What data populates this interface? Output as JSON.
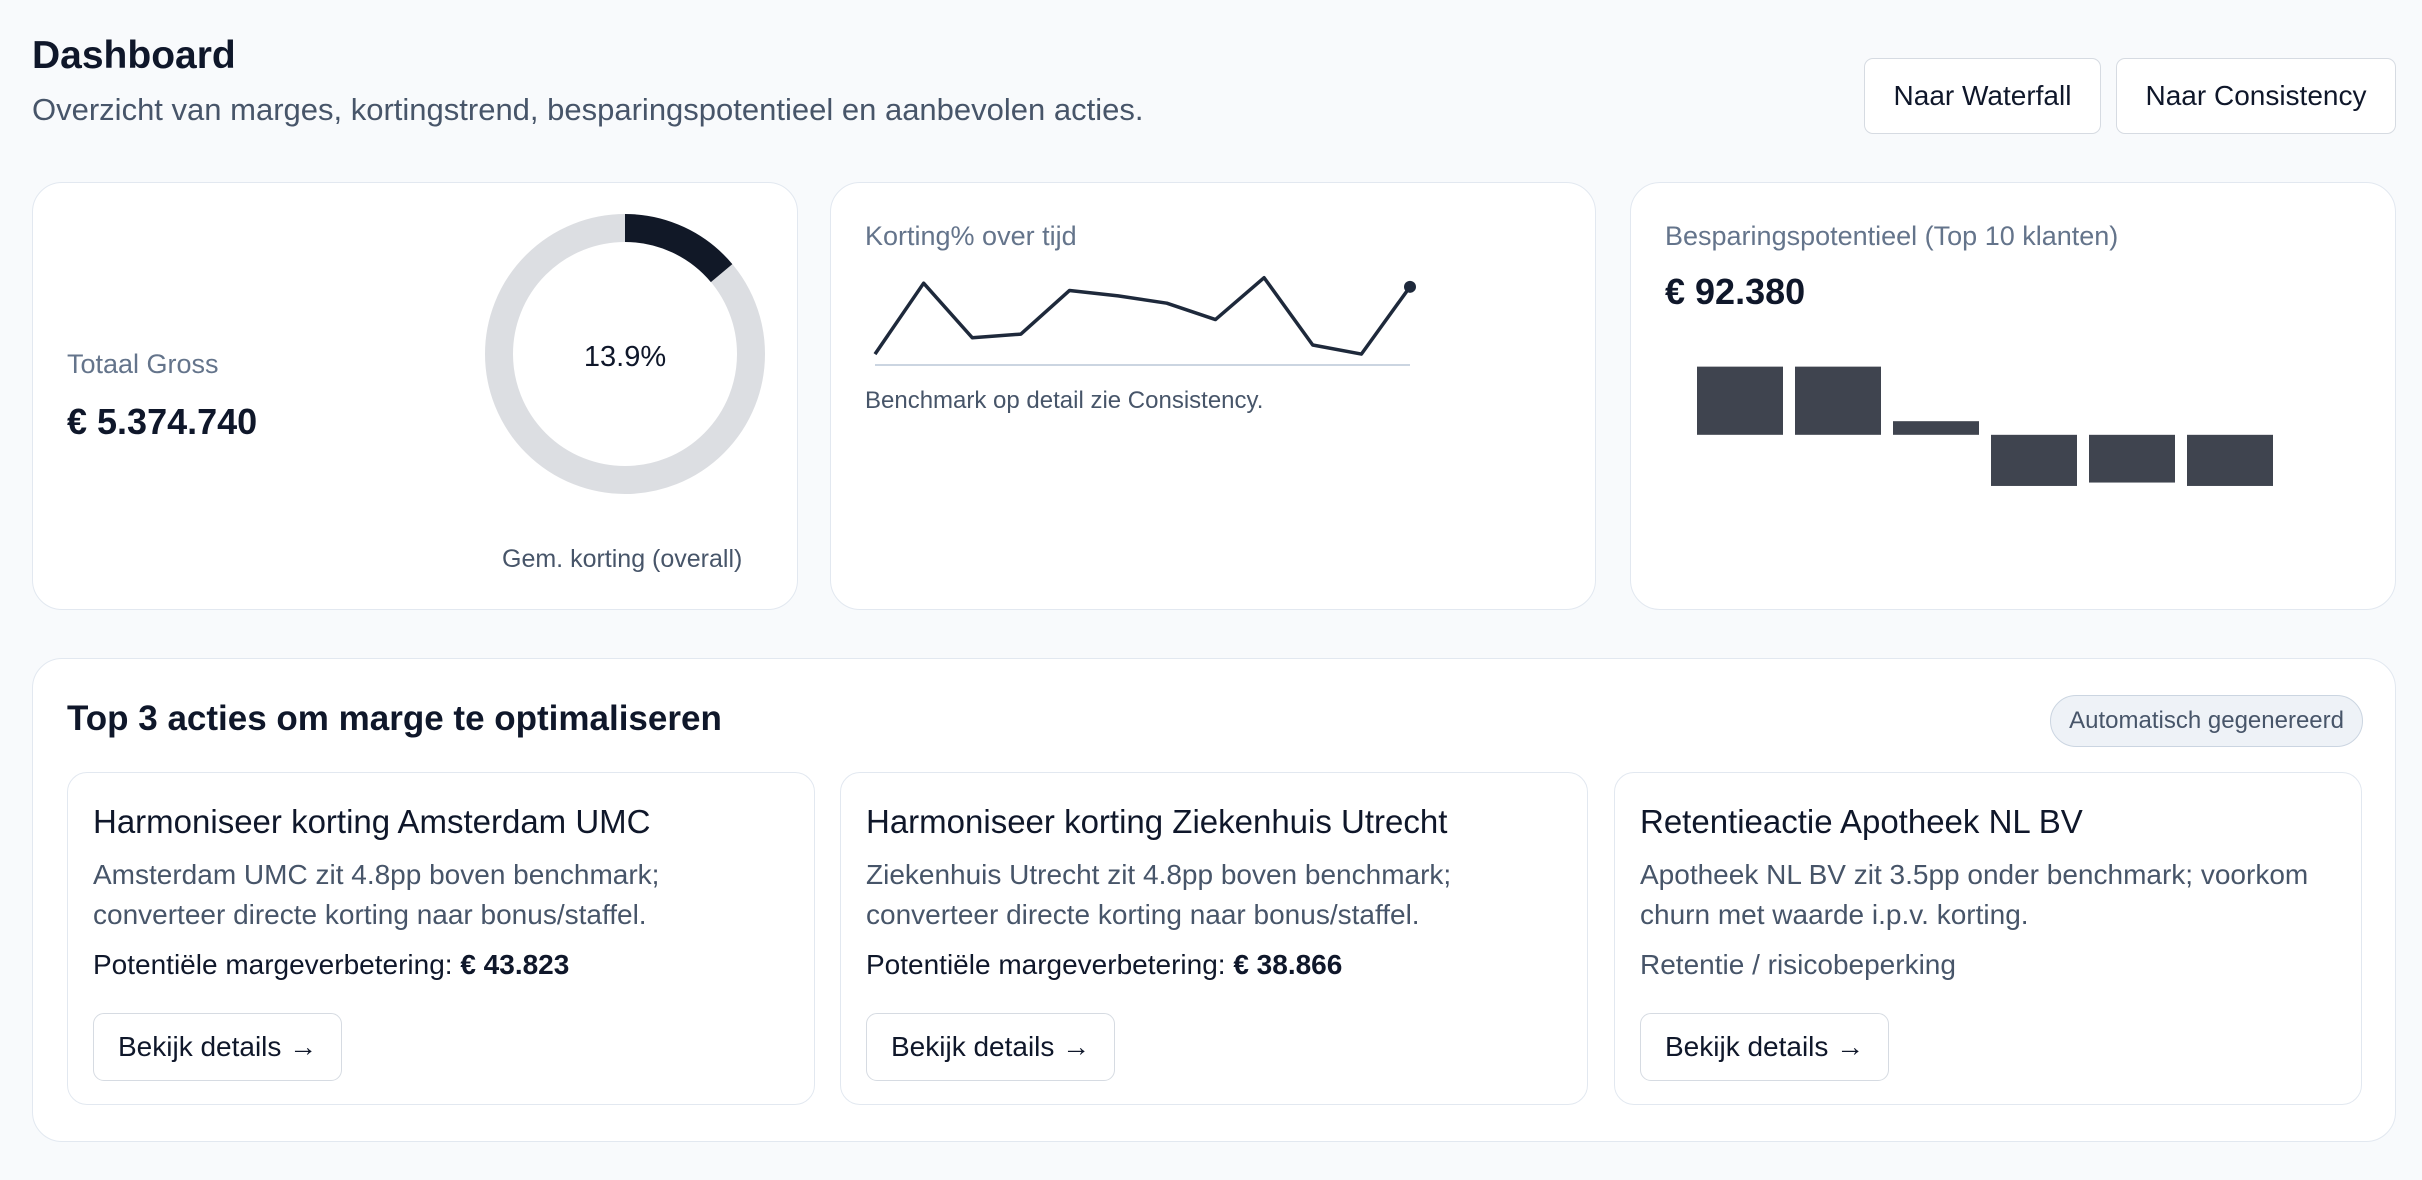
{
  "header": {
    "title": "Dashboard",
    "subtitle": "Overzicht van marges, kortingstrend, besparingspotentieel en aanbevolen acties.",
    "buttons": [
      "Naar Waterfall",
      "Naar Consistency"
    ]
  },
  "kpi_gross": {
    "label": "Totaal Gross",
    "value": "€ 5.374.740",
    "donut_center": "13.9%",
    "donut_caption": "Gem. korting (overall)",
    "donut_fraction": 0.139,
    "colors": {
      "fill": "#111827",
      "track": "#dcdee2"
    }
  },
  "trend": {
    "title": "Korting% over tijd",
    "note": "Benchmark op detail zie Consistency.",
    "line_color": "#1e293b"
  },
  "savings": {
    "title": "Besparingspotentieel (Top 10 klanten)",
    "value": "€ 92.380",
    "bar_color": "#3f444f"
  },
  "actions_section": {
    "title": "Top 3 acties om marge te optimaliseren",
    "badge": "Automatisch gegenereerd",
    "items": [
      {
        "title": "Harmoniseer korting Amsterdam UMC",
        "desc": "Amsterdam UMC zit 4.8pp boven benchmark; converteer directe korting naar bonus/staffel.",
        "impact_label": "Potentiële margeverbetering:",
        "impact_value": "€ 43.823",
        "button": "Bekijk details →"
      },
      {
        "title": "Harmoniseer korting Ziekenhuis Utrecht",
        "desc": "Ziekenhuis Utrecht zit 4.8pp boven benchmark; converteer directe korting naar bonus/staffel.",
        "impact_label": "Potentiële margeverbetering:",
        "impact_value": "€ 38.866",
        "button": "Bekijk details →"
      },
      {
        "title": "Retentieactie Apotheek NL BV",
        "desc": "Apotheek NL BV zit 3.5pp onder benchmark; voorkom churn met waarde i.p.v. korting.",
        "tag": "Retentie / risicobeperking",
        "button": "Bekijk details →"
      }
    ]
  },
  "chart_data": [
    {
      "type": "line",
      "x": [
        1,
        2,
        3,
        4,
        5,
        6,
        7,
        8,
        9,
        10,
        11,
        12
      ],
      "values": [
        12.1,
        16.0,
        13.0,
        13.2,
        15.6,
        15.3,
        14.9,
        14.0,
        16.3,
        12.6,
        12.1,
        15.8
      ],
      "ylim": [
        11.5,
        17.0
      ],
      "last_point_marker": true
    },
    {
      "type": "bar",
      "categories": [
        "1",
        "2",
        "3",
        "4",
        "5",
        "6"
      ],
      "values": [
        20,
        20,
        4,
        -15,
        -14,
        -15
      ],
      "ylim": [
        -20,
        24
      ]
    }
  ]
}
